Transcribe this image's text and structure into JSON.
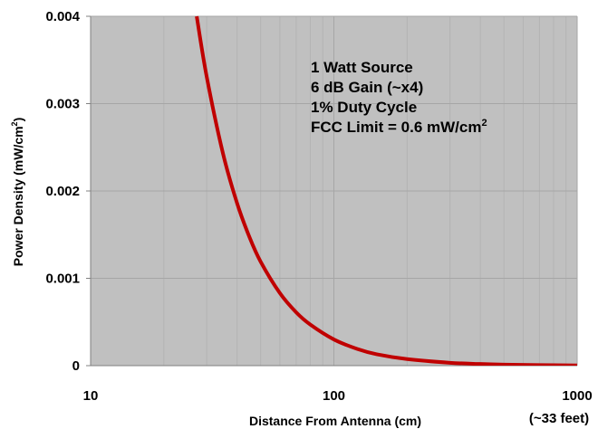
{
  "chart_data": {
    "type": "line",
    "title": "",
    "xlabel": "Distance From Antenna (cm)",
    "ylabel": "Power Density (mW/cm",
    "ylabel_sup": "2",
    "ylabel_end": ")",
    "x_scale": "log",
    "xlim": [
      10,
      1000
    ],
    "ylim": [
      0,
      0.004
    ],
    "x_ticks": [
      {
        "value": 10,
        "label": "10"
      },
      {
        "value": 100,
        "label": "100"
      },
      {
        "value": 1000,
        "label": "1000"
      }
    ],
    "x_tick_note": "(~33 feet)",
    "y_ticks": [
      {
        "value": 0,
        "label": "0"
      },
      {
        "value": 0.001,
        "label": "0.001"
      },
      {
        "value": 0.002,
        "label": "0.002"
      },
      {
        "value": 0.003,
        "label": "0.003"
      },
      {
        "value": 0.004,
        "label": "0.004"
      }
    ],
    "grid": true,
    "annotations": [
      "1 Watt Source",
      "6 dB Gain (~x4)",
      "1% Duty Cycle",
      "FCC Limit = 0.6 mW/cm"
    ],
    "annotation_last_sup": "2",
    "series": [
      {
        "color": "#c00000",
        "x": [
          27.3,
          30,
          35,
          40,
          45,
          50,
          60,
          70,
          80,
          100,
          125,
          150,
          200,
          300,
          400,
          500,
          700,
          1000
        ],
        "y": [
          0.004,
          0.00331,
          0.00243,
          0.00186,
          0.00147,
          0.00119,
          0.00083,
          0.00061,
          0.00047,
          0.0003,
          0.00019,
          0.00013,
          7.5e-05,
          3.3e-05,
          1.9e-05,
          1.2e-05,
          6.1e-06,
          3e-06
        ]
      }
    ],
    "colors": {
      "plot_background": "#c0c0c0",
      "gridline": "#a6a6a6",
      "minor_gridline": "#b3b3b3",
      "line": "#c00000"
    }
  }
}
